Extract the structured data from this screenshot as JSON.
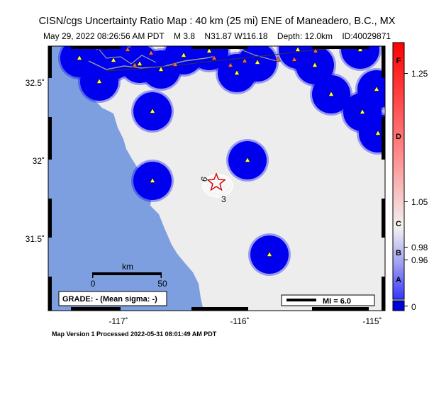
{
  "title": "CISN/cgs Uncertainty Ratio Map : 40 km (25 mi) ENE of Maneadero, B.C., MX",
  "subtitle": {
    "date": "May 29, 2022 08:26:56 AM PDT",
    "magnitude": "M 3.8",
    "location": "N31.87 W116.18",
    "depth": "Depth: 12.0km",
    "id": "ID:40029871"
  },
  "footer": "Map Version 1 Processed 2022-05-31 08:01:49 AM PDT",
  "axes": {
    "lon_ticks": [
      "-117˚",
      "-116˚",
      "-115˚"
    ],
    "lat_ticks": [
      "32.5˚",
      "32˚",
      "31.5˚"
    ]
  },
  "scale_bar": {
    "unit": "km",
    "min_label": "0",
    "max_label": "50"
  },
  "grade_box": "GRADE: - (Mean sigma: -)",
  "mi_box": "MI = 6.0",
  "contour_labels": [
    "6",
    "3"
  ],
  "colorbar": {
    "letters": [
      "F",
      "D",
      "C",
      "B",
      "A"
    ],
    "values": [
      "1.25",
      "1.05",
      "0.98",
      "0.96",
      "0"
    ]
  },
  "colors": {
    "land": "#ededed",
    "ocean": "#7d9fe0",
    "station_circle": "#0000ee",
    "station_triangle": "#ffff33",
    "other_station": "#ee6655",
    "epicenter_star": "#cc0000"
  }
}
